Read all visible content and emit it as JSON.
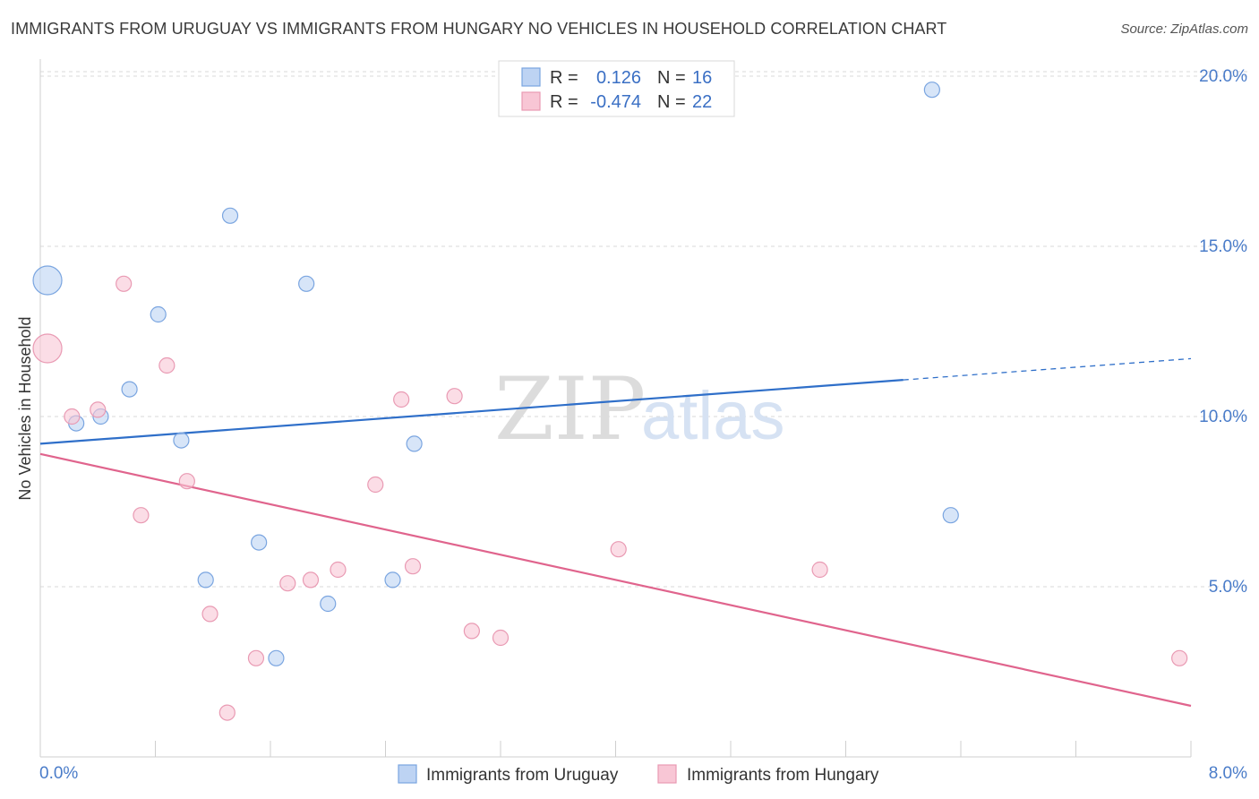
{
  "title": "IMMIGRANTS FROM URUGUAY VS IMMIGRANTS FROM HUNGARY NO VEHICLES IN HOUSEHOLD CORRELATION CHART",
  "source": "Source: ZipAtlas.com",
  "watermark": {
    "zip": "ZIP",
    "atlas": "atlas"
  },
  "colors": {
    "uruguay_fill": "#bdd3f3",
    "uruguay_stroke": "#7aa5e0",
    "uruguay_line": "#2f6fc9",
    "hungary_fill": "#f8c6d5",
    "hungary_stroke": "#e99ab3",
    "hungary_line": "#e0648d",
    "grid": "#d9d9d9",
    "axis_label": "#4a7cc9"
  },
  "stats": [
    {
      "r_label": "R =",
      "r_value": "0.126",
      "n_label": "N =",
      "n_value": "16"
    },
    {
      "r_label": "R =",
      "r_value": "-0.474",
      "n_label": "N =",
      "n_value": "22"
    }
  ],
  "chart_data": {
    "type": "scatter",
    "title": "IMMIGRANTS FROM URUGUAY VS IMMIGRANTS FROM HUNGARY NO VEHICLES IN HOUSEHOLD CORRELATION CHART",
    "xlabel": "",
    "ylabel": "No Vehicles in Household",
    "xlim": [
      0,
      8
    ],
    "ylim": [
      0,
      20.5
    ],
    "x_tick_labels": [
      "0.0%",
      "8.0%"
    ],
    "y_ticks": [
      5,
      10,
      15,
      20
    ],
    "y_tick_labels": [
      "5.0%",
      "10.0%",
      "15.0%",
      "20.0%"
    ],
    "grid": "horizontal dashed",
    "legend_position": "bottom-center",
    "series": [
      {
        "name": "Immigrants from Uruguay",
        "points": [
          {
            "x": 0.05,
            "y": 14.0,
            "size": "large"
          },
          {
            "x": 0.25,
            "y": 9.8
          },
          {
            "x": 0.42,
            "y": 10.0
          },
          {
            "x": 0.62,
            "y": 10.8
          },
          {
            "x": 0.82,
            "y": 13.0
          },
          {
            "x": 0.98,
            "y": 9.3
          },
          {
            "x": 1.15,
            "y": 5.2
          },
          {
            "x": 1.32,
            "y": 15.9
          },
          {
            "x": 1.52,
            "y": 6.3
          },
          {
            "x": 1.64,
            "y": 2.9
          },
          {
            "x": 1.85,
            "y": 13.9
          },
          {
            "x": 2.0,
            "y": 4.5
          },
          {
            "x": 2.45,
            "y": 5.2
          },
          {
            "x": 2.6,
            "y": 9.2
          },
          {
            "x": 6.2,
            "y": 19.6
          },
          {
            "x": 6.33,
            "y": 7.1
          }
        ],
        "trend": {
          "x": [
            0,
            6.0,
            8.0
          ],
          "y": [
            9.2,
            11.1,
            11.7
          ],
          "solid_until": 6.0
        }
      },
      {
        "name": "Immigrants from Hungary",
        "points": [
          {
            "x": 0.05,
            "y": 12.0,
            "size": "large"
          },
          {
            "x": 0.22,
            "y": 10.0
          },
          {
            "x": 0.4,
            "y": 10.2
          },
          {
            "x": 0.58,
            "y": 13.9
          },
          {
            "x": 0.7,
            "y": 7.1
          },
          {
            "x": 0.88,
            "y": 11.5
          },
          {
            "x": 1.02,
            "y": 8.1
          },
          {
            "x": 1.18,
            "y": 4.2
          },
          {
            "x": 1.3,
            "y": 1.3
          },
          {
            "x": 1.5,
            "y": 2.9
          },
          {
            "x": 1.72,
            "y": 5.1
          },
          {
            "x": 1.88,
            "y": 5.2
          },
          {
            "x": 2.07,
            "y": 5.5
          },
          {
            "x": 2.33,
            "y": 8.0
          },
          {
            "x": 2.51,
            "y": 10.5
          },
          {
            "x": 2.59,
            "y": 5.6
          },
          {
            "x": 2.88,
            "y": 10.6
          },
          {
            "x": 3.0,
            "y": 3.7
          },
          {
            "x": 3.2,
            "y": 3.5
          },
          {
            "x": 4.02,
            "y": 6.1
          },
          {
            "x": 5.42,
            "y": 5.5
          },
          {
            "x": 7.92,
            "y": 2.9
          }
        ],
        "trend": {
          "x": [
            0,
            8.0
          ],
          "y": [
            8.9,
            1.5
          ],
          "solid_until": 8.0
        }
      }
    ]
  }
}
